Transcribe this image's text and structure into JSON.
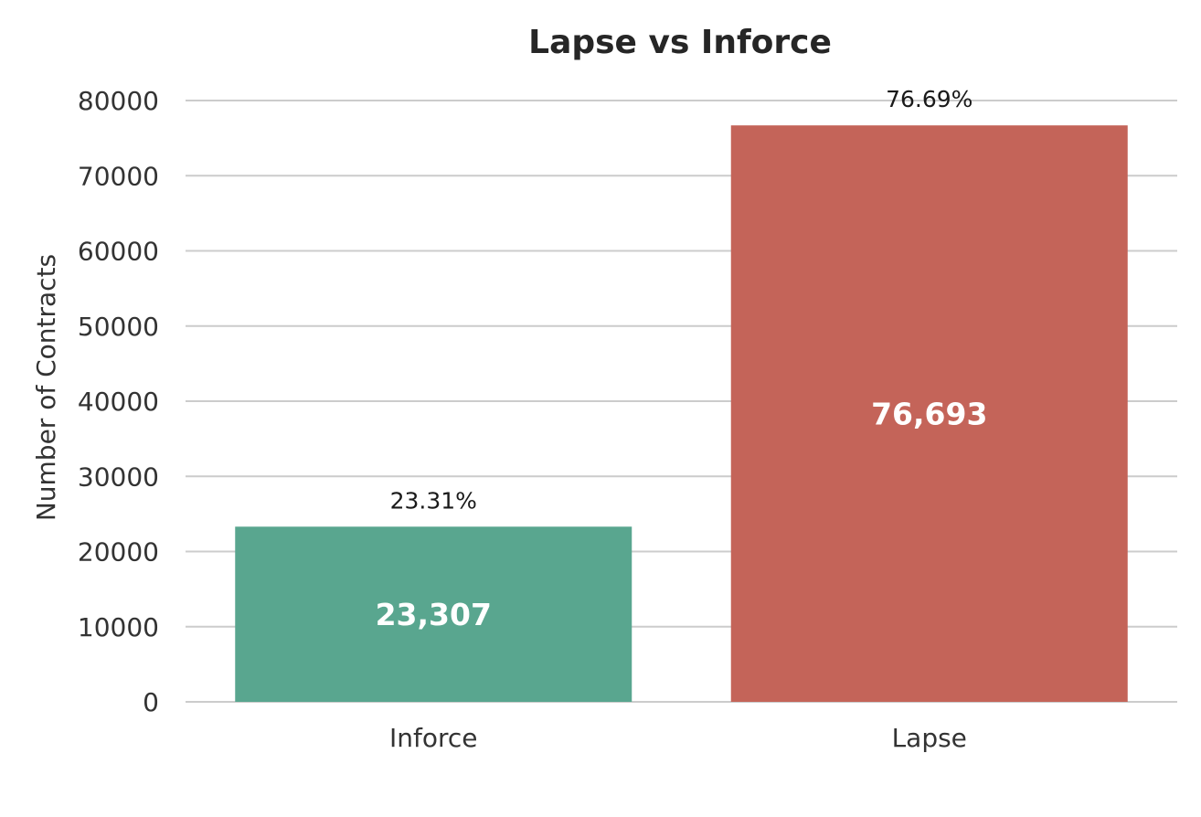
{
  "chart_data": {
    "type": "bar",
    "title": "Lapse vs Inforce",
    "xlabel": "",
    "ylabel": "Number of Contracts",
    "categories": [
      "Inforce",
      "Lapse"
    ],
    "values": [
      23307,
      76693
    ],
    "value_labels": [
      "23,307",
      "76,693"
    ],
    "percent_labels": [
      "23.31%",
      "76.69%"
    ],
    "colors": [
      "#59a68f",
      "#c46459"
    ],
    "ylim": [
      0,
      80000
    ],
    "yticks": [
      0,
      10000,
      20000,
      30000,
      40000,
      50000,
      60000,
      70000,
      80000
    ],
    "ytick_labels": [
      "0",
      "10000",
      "20000",
      "30000",
      "40000",
      "50000",
      "60000",
      "70000",
      "80000"
    ],
    "grid": true,
    "grid_axis": "y",
    "legend": "none"
  }
}
